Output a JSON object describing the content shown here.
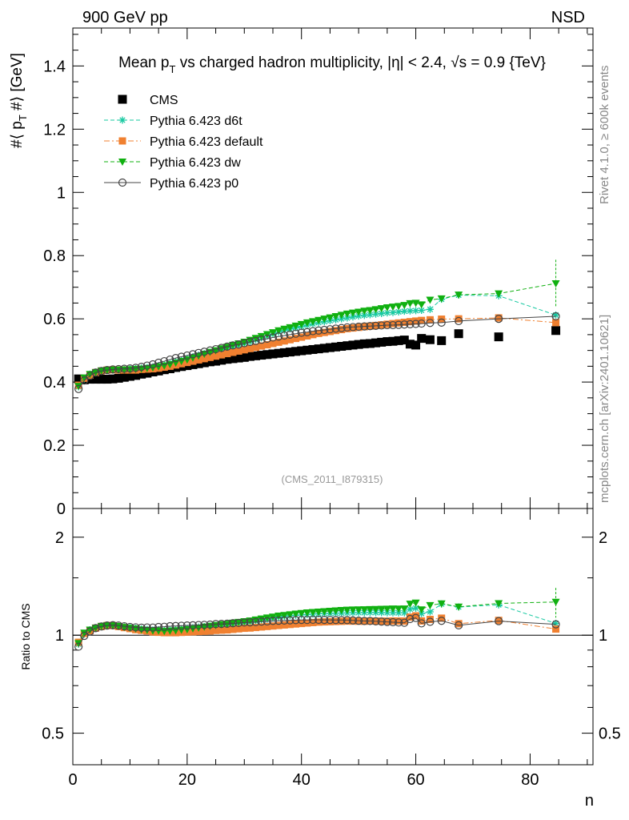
{
  "header": {
    "left": "900 GeV pp",
    "right": "NSD"
  },
  "side_labels": {
    "rivet": "Rivet 4.1.0, ≥ 600k events",
    "mcplots": "mcplots.cern.ch [arXiv:2401.10621]"
  },
  "chart_data": {
    "type": "scatter",
    "title": "Mean p_T vs charged hadron multiplicity, |η| < 2.4, √s = 0.9 {TeV}",
    "title_text": {
      "a": "Mean p",
      "sub": "T",
      "b": " vs charged hadron multiplicity, |η| < 2.4, √s = 0.9 {TeV}"
    },
    "analysis": "(CMS_2011_I879315)",
    "xlabel": "n",
    "ylabel": "#⟨ p_T #⟩ [GeV]",
    "ylabel_text": {
      "a": "#⟨ p",
      "sub": "T",
      "b": " #⟩ [GeV]"
    },
    "ratio_ylabel": "Ratio to CMS",
    "xlim": [
      0,
      91
    ],
    "ylim": [
      0,
      1.52
    ],
    "ratio_ylim": [
      0.4,
      2.45
    ],
    "x_ticks": [
      "0",
      "20",
      "40",
      "60",
      "80"
    ],
    "x_tick_values": [
      0,
      20,
      40,
      60,
      80
    ],
    "y_ticks": [
      "0",
      "0.2",
      "0.4",
      "0.6",
      "0.8",
      "1",
      "1.2",
      "1.4"
    ],
    "y_tick_values": [
      0,
      0.2,
      0.4,
      0.6,
      0.8,
      1.0,
      1.2,
      1.4
    ],
    "ratio_ticks": [
      "0.5",
      "1",
      "2"
    ],
    "ratio_tick_values": [
      0.5,
      1,
      2
    ],
    "x": [
      1,
      2,
      3,
      4,
      5,
      6,
      7,
      8,
      9,
      10,
      11,
      12,
      13,
      14,
      15,
      16,
      17,
      18,
      19,
      20,
      21,
      22,
      23,
      24,
      25,
      26,
      27,
      28,
      29,
      30,
      31,
      32,
      33,
      34,
      35,
      36,
      37,
      38,
      39,
      40,
      41,
      42,
      43,
      44,
      45,
      46,
      47,
      48,
      49,
      50,
      51,
      52,
      53,
      54,
      55,
      56,
      57,
      58,
      59,
      60,
      61,
      62.5,
      64.5,
      67.5,
      74.5,
      84.5
    ],
    "series": [
      {
        "name": "CMS",
        "color": "#000000",
        "marker": "square",
        "line": "none",
        "values": [
          0.41,
          0.407,
          0.409,
          0.409,
          0.409,
          0.409,
          0.41,
          0.412,
          0.415,
          0.418,
          0.421,
          0.425,
          0.428,
          0.432,
          0.435,
          0.439,
          0.442,
          0.446,
          0.449,
          0.452,
          0.455,
          0.458,
          0.461,
          0.464,
          0.466,
          0.469,
          0.472,
          0.474,
          0.476,
          0.478,
          0.481,
          0.483,
          0.485,
          0.487,
          0.489,
          0.491,
          0.493,
          0.495,
          0.497,
          0.499,
          0.501,
          0.503,
          0.505,
          0.507,
          0.509,
          0.511,
          0.513,
          0.515,
          0.517,
          0.519,
          0.521,
          0.522,
          0.524,
          0.526,
          0.528,
          0.529,
          0.531,
          0.533,
          0.52,
          0.517,
          0.538,
          0.534,
          0.531,
          0.553,
          0.543,
          0.563
        ]
      },
      {
        "name": "Pythia 6.423 d6t",
        "color": "#17c9a1",
        "marker": "star",
        "line": "dashed",
        "values": [
          0.385,
          0.41,
          0.425,
          0.43,
          0.435,
          0.437,
          0.438,
          0.439,
          0.44,
          0.441,
          0.442,
          0.444,
          0.446,
          0.448,
          0.452,
          0.455,
          0.46,
          0.465,
          0.47,
          0.475,
          0.48,
          0.485,
          0.49,
          0.494,
          0.498,
          0.503,
          0.507,
          0.512,
          0.517,
          0.522,
          0.528,
          0.534,
          0.54,
          0.546,
          0.552,
          0.558,
          0.563,
          0.568,
          0.572,
          0.576,
          0.58,
          0.584,
          0.588,
          0.591,
          0.594,
          0.597,
          0.6,
          0.603,
          0.606,
          0.609,
          0.611,
          0.613,
          0.615,
          0.617,
          0.619,
          0.62,
          0.622,
          0.624,
          0.625,
          0.626,
          0.627,
          0.63,
          0.662,
          0.675,
          0.673,
          0.612
        ]
      },
      {
        "name": "Pythia 6.423 default",
        "color": "#f08030",
        "marker": "square",
        "line": "dashdot",
        "values": [
          0.39,
          0.412,
          0.422,
          0.43,
          0.435,
          0.438,
          0.439,
          0.438,
          0.438,
          0.438,
          0.438,
          0.44,
          0.441,
          0.442,
          0.444,
          0.447,
          0.45,
          0.454,
          0.458,
          0.462,
          0.466,
          0.47,
          0.474,
          0.478,
          0.482,
          0.486,
          0.49,
          0.494,
          0.498,
          0.502,
          0.506,
          0.51,
          0.514,
          0.518,
          0.522,
          0.526,
          0.53,
          0.534,
          0.538,
          0.542,
          0.546,
          0.55,
          0.554,
          0.557,
          0.56,
          0.563,
          0.566,
          0.569,
          0.571,
          0.573,
          0.575,
          0.577,
          0.579,
          0.581,
          0.583,
          0.585,
          0.587,
          0.589,
          0.591,
          0.593,
          0.595,
          0.597,
          0.599,
          0.6,
          0.603,
          0.588
        ]
      },
      {
        "name": "Pythia 6.423 dw",
        "color": "#10b010",
        "marker": "triangle-down",
        "line": "dashed",
        "values": [
          0.387,
          0.414,
          0.425,
          0.431,
          0.436,
          0.438,
          0.439,
          0.439,
          0.439,
          0.44,
          0.441,
          0.442,
          0.444,
          0.446,
          0.449,
          0.452,
          0.456,
          0.461,
          0.466,
          0.471,
          0.477,
          0.483,
          0.489,
          0.495,
          0.5,
          0.506,
          0.511,
          0.517,
          0.522,
          0.527,
          0.533,
          0.539,
          0.545,
          0.551,
          0.557,
          0.563,
          0.568,
          0.573,
          0.578,
          0.583,
          0.588,
          0.592,
          0.596,
          0.6,
          0.604,
          0.608,
          0.612,
          0.616,
          0.619,
          0.622,
          0.625,
          0.627,
          0.63,
          0.633,
          0.636,
          0.638,
          0.64,
          0.643,
          0.649,
          0.65,
          0.645,
          0.66,
          0.664,
          0.676,
          0.68,
          0.712
        ]
      },
      {
        "name": "Pythia 6.423 p0",
        "color": "#444444",
        "marker": "circle-open",
        "line": "solid",
        "values": [
          0.378,
          0.405,
          0.42,
          0.43,
          0.435,
          0.438,
          0.44,
          0.441,
          0.442,
          0.443,
          0.445,
          0.448,
          0.452,
          0.456,
          0.461,
          0.466,
          0.471,
          0.476,
          0.48,
          0.484,
          0.488,
          0.492,
          0.496,
          0.5,
          0.504,
          0.508,
          0.512,
          0.516,
          0.519,
          0.523,
          0.527,
          0.53,
          0.534,
          0.537,
          0.541,
          0.544,
          0.547,
          0.55,
          0.553,
          0.556,
          0.558,
          0.561,
          0.563,
          0.565,
          0.567,
          0.569,
          0.571,
          0.573,
          0.574,
          0.575,
          0.576,
          0.577,
          0.578,
          0.579,
          0.58,
          0.58,
          0.581,
          0.582,
          0.583,
          0.584,
          0.585,
          0.587,
          0.588,
          0.593,
          0.6,
          0.608
        ]
      }
    ]
  }
}
